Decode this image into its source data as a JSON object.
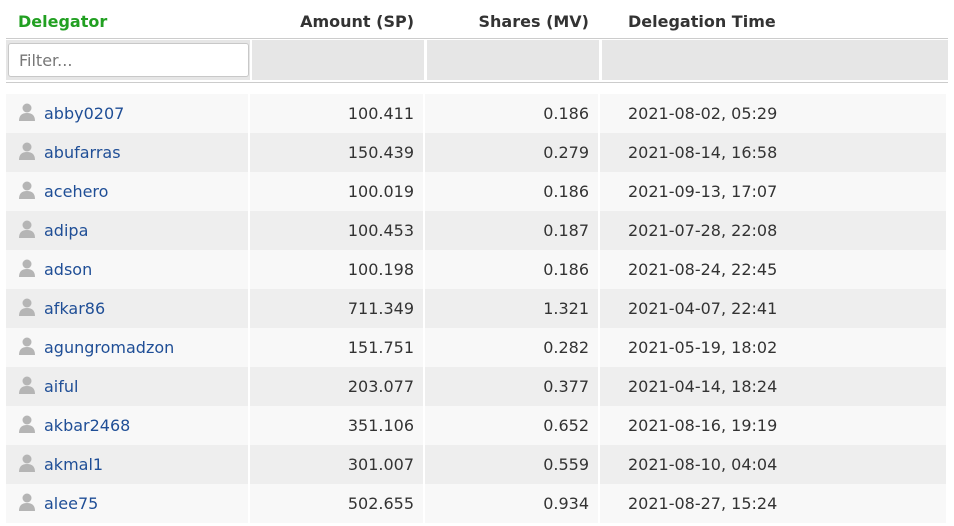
{
  "table": {
    "columns": [
      "Delegator",
      "Amount (SP)",
      "Shares (MV)",
      "Delegation Time"
    ],
    "filter_placeholder": "Filter...",
    "rows": [
      [
        "abby0207",
        "100.411",
        "0.186",
        "2021-08-02, 05:29"
      ],
      [
        "abufarras",
        "150.439",
        "0.279",
        "2021-08-14, 16:58"
      ],
      [
        "acehero",
        "100.019",
        "0.186",
        "2021-09-13, 17:07"
      ],
      [
        "adipa",
        "100.453",
        "0.187",
        "2021-07-28, 22:08"
      ],
      [
        "adson",
        "100.198",
        "0.186",
        "2021-08-24, 22:45"
      ],
      [
        "afkar86",
        "711.349",
        "1.321",
        "2021-04-07, 22:41"
      ],
      [
        "agungromadzon",
        "151.751",
        "0.282",
        "2021-05-19, 18:02"
      ],
      [
        "aiful",
        "203.077",
        "0.377",
        "2021-04-14, 18:24"
      ],
      [
        "akbar2468",
        "351.106",
        "0.652",
        "2021-08-16, 19:19"
      ],
      [
        "akmal1",
        "301.007",
        "0.559",
        "2021-08-10, 04:04"
      ],
      [
        "alee75",
        "502.655",
        "0.934",
        "2021-08-27, 15:24"
      ]
    ]
  }
}
